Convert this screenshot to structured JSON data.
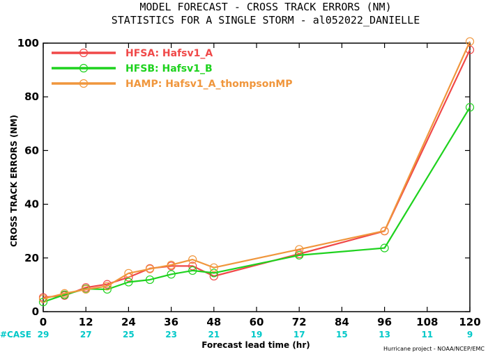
{
  "chart_data": {
    "type": "line",
    "title": "MODEL FORECAST - CROSS TRACK ERRORS (NM)",
    "subtitle": "STATISTICS FOR A SINGLE STORM - al052022_DANIELLE",
    "xlabel": "Forecast lead time (hr)",
    "ylabel": "CROSS TRACK ERRORS (NM)",
    "xlim": [
      0,
      120
    ],
    "ylim": [
      0,
      100
    ],
    "x_ticks": [
      0,
      12,
      24,
      36,
      48,
      60,
      72,
      84,
      96,
      108,
      120
    ],
    "y_ticks": [
      0,
      20,
      40,
      60,
      80,
      100
    ],
    "grid": false,
    "legend_position": "top-left",
    "case_label": "#CASE",
    "case_counts": [
      29,
      27,
      25,
      23,
      21,
      19,
      17,
      15,
      13,
      11,
      9
    ],
    "case_color": "#00c8c8",
    "series": [
      {
        "name": "HFSA: Hafsv1_A",
        "color": "#f04848",
        "x": [
          0,
          6,
          12,
          18,
          24,
          30,
          36,
          42,
          48,
          72,
          96,
          120
        ],
        "y": [
          5.3,
          6.0,
          9.0,
          10.2,
          12.8,
          16.1,
          17.0,
          17.0,
          13.2,
          21.5,
          30.0,
          97.5
        ]
      },
      {
        "name": "HFSB: Hafsv1_B",
        "color": "#1ed21e",
        "x": [
          0,
          6,
          12,
          18,
          24,
          30,
          36,
          42,
          48,
          72,
          96,
          120
        ],
        "y": [
          3.6,
          6.3,
          8.5,
          8.3,
          11.0,
          11.9,
          13.9,
          15.3,
          14.4,
          21.0,
          23.7,
          76.1
        ]
      },
      {
        "name": "HAMP: Hafsv1_A_thompsonMP",
        "color": "#f0963c",
        "x": [
          0,
          6,
          12,
          18,
          24,
          30,
          36,
          42,
          48,
          72,
          96,
          120
        ],
        "y": [
          4.8,
          6.8,
          8.3,
          9.5,
          14.3,
          15.9,
          17.4,
          19.4,
          16.4,
          23.2,
          30.1,
          100.6
        ]
      }
    ],
    "credit": "Hurricane project - NOAA/NCEP/EMC"
  }
}
